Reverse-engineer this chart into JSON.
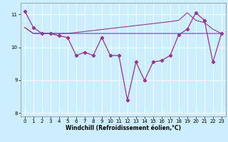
{
  "xlabel": "Windchill (Refroidissement éolien,°C)",
  "bg_color": "#cceeff",
  "line_color": "#993399",
  "x": [
    0,
    1,
    2,
    3,
    4,
    5,
    6,
    7,
    8,
    9,
    10,
    11,
    12,
    13,
    14,
    15,
    16,
    17,
    18,
    19,
    20,
    21,
    22,
    23
  ],
  "y_main": [
    11.1,
    10.6,
    10.42,
    10.42,
    10.35,
    10.3,
    9.75,
    9.85,
    9.75,
    10.3,
    9.75,
    9.75,
    8.4,
    9.55,
    9.0,
    9.55,
    9.6,
    9.75,
    10.38,
    10.55,
    11.05,
    10.82,
    9.55,
    10.42
  ],
  "y_trend_flat": [
    10.6,
    10.42,
    10.42,
    10.42,
    10.42,
    10.42,
    10.42,
    10.42,
    10.42,
    10.42,
    10.42,
    10.42,
    10.42,
    10.42,
    10.42,
    10.42,
    10.42,
    10.42,
    10.42,
    10.42,
    10.42,
    10.42,
    10.42,
    10.42
  ],
  "y_trend_up": [
    10.6,
    10.42,
    10.42,
    10.42,
    10.42,
    10.42,
    10.45,
    10.48,
    10.51,
    10.54,
    10.57,
    10.6,
    10.63,
    10.66,
    10.69,
    10.72,
    10.75,
    10.78,
    10.82,
    11.05,
    10.82,
    10.75,
    10.55,
    10.42
  ],
  "ylim": [
    7.9,
    11.35
  ],
  "xlim": [
    -0.5,
    23.5
  ],
  "yticks": [
    8,
    9,
    10,
    11
  ],
  "xticks": [
    0,
    1,
    2,
    3,
    4,
    5,
    6,
    7,
    8,
    9,
    10,
    11,
    12,
    13,
    14,
    15,
    16,
    17,
    18,
    19,
    20,
    21,
    22,
    23
  ],
  "grid_color": "#b0dde8",
  "marker_size": 2.5
}
